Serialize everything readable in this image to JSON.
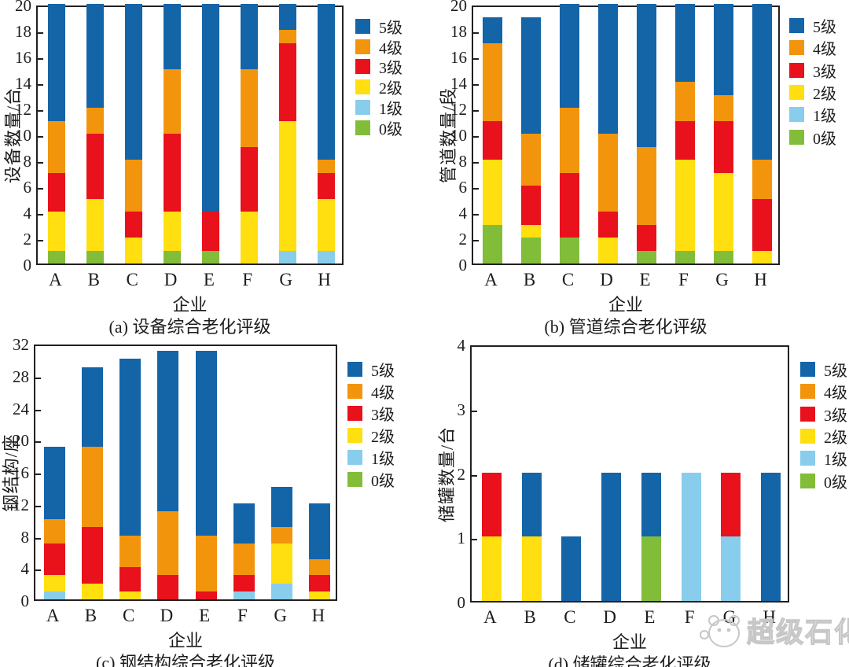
{
  "page": {
    "background": "#ffffff",
    "watermark_text": "超级石化"
  },
  "colors": {
    "5级": "#1464a8",
    "4级": "#f2950d",
    "3级": "#e8111c",
    "2级": "#ffdf0f",
    "1级": "#89cdec",
    "0级": "#82bd3a"
  },
  "legend": {
    "position": "right",
    "entries": [
      "5级",
      "4级",
      "3级",
      "2级",
      "1级",
      "0级"
    ]
  },
  "chart_data": [
    {
      "id": "a",
      "type": "bar",
      "stacked": true,
      "caption": "(a) 设备综合老化评级",
      "ylabel": "设备数量/台",
      "xlabel": "企业",
      "categories": [
        "A",
        "B",
        "C",
        "D",
        "E",
        "F",
        "G",
        "H"
      ],
      "ylim": [
        0,
        20
      ],
      "yticks": [
        0,
        2,
        4,
        6,
        8,
        10,
        12,
        14,
        16,
        18,
        20
      ],
      "grid": false,
      "series": [
        {
          "name": "0级",
          "values": [
            1,
            1,
            0,
            1,
            1,
            0,
            0,
            0
          ]
        },
        {
          "name": "1级",
          "values": [
            0,
            0,
            0,
            0,
            0,
            0,
            1,
            1
          ]
        },
        {
          "name": "2级",
          "values": [
            3,
            4,
            2,
            3,
            0,
            4,
            10,
            4
          ]
        },
        {
          "name": "3级",
          "values": [
            3,
            5,
            2,
            6,
            3,
            5,
            6,
            2
          ]
        },
        {
          "name": "4级",
          "values": [
            4,
            2,
            4,
            5,
            0,
            6,
            1,
            1
          ]
        },
        {
          "name": "5级",
          "values": [
            9,
            8,
            12,
            5,
            16,
            5,
            2,
            12
          ]
        }
      ]
    },
    {
      "id": "b",
      "type": "bar",
      "stacked": true,
      "caption": "(b) 管道综合老化评级",
      "ylabel": "管道数量/段",
      "xlabel": "企业",
      "categories": [
        "A",
        "B",
        "C",
        "D",
        "E",
        "F",
        "G",
        "H"
      ],
      "ylim": [
        0,
        20
      ],
      "yticks": [
        0,
        2,
        4,
        6,
        8,
        10,
        12,
        14,
        16,
        18,
        20
      ],
      "grid": false,
      "series": [
        {
          "name": "0级",
          "values": [
            3,
            2,
            2,
            0,
            1,
            1,
            1,
            0
          ]
        },
        {
          "name": "1级",
          "values": [
            0,
            0,
            0,
            0,
            0,
            0,
            0,
            0
          ]
        },
        {
          "name": "2级",
          "values": [
            5,
            1,
            0,
            2,
            0,
            7,
            6,
            1
          ]
        },
        {
          "name": "3级",
          "values": [
            3,
            3,
            5,
            2,
            2,
            3,
            4,
            4
          ]
        },
        {
          "name": "4级",
          "values": [
            6,
            4,
            5,
            6,
            6,
            3,
            2,
            3
          ]
        },
        {
          "name": "5级",
          "values": [
            2,
            9,
            8,
            10,
            11,
            6,
            7,
            12
          ]
        }
      ]
    },
    {
      "id": "c",
      "type": "bar",
      "stacked": true,
      "caption": "(c) 钢结构综合老化评级",
      "ylabel": "钢结构/座",
      "xlabel": "企业",
      "categories": [
        "A",
        "B",
        "C",
        "D",
        "E",
        "F",
        "G",
        "H"
      ],
      "ylim": [
        0,
        32
      ],
      "yticks": [
        0,
        4,
        8,
        12,
        16,
        20,
        24,
        28,
        32
      ],
      "grid": false,
      "series": [
        {
          "name": "0级",
          "values": [
            0,
            0,
            0,
            0,
            0,
            0,
            0,
            0
          ]
        },
        {
          "name": "1级",
          "values": [
            1,
            0,
            0,
            0,
            0,
            1,
            2,
            0
          ]
        },
        {
          "name": "2级",
          "values": [
            2,
            2,
            1,
            0,
            0,
            0,
            5,
            1
          ]
        },
        {
          "name": "3级",
          "values": [
            4,
            7,
            3,
            3,
            1,
            2,
            0,
            2
          ]
        },
        {
          "name": "4级",
          "values": [
            3,
            10,
            4,
            8,
            7,
            4,
            2,
            2
          ]
        },
        {
          "name": "5级",
          "values": [
            9,
            10,
            22,
            20,
            23,
            5,
            5,
            7
          ]
        }
      ]
    },
    {
      "id": "d",
      "type": "bar",
      "stacked": true,
      "caption": "(d) 储罐综合老化评级",
      "ylabel": "储罐数量/台",
      "xlabel": "企业",
      "categories": [
        "A",
        "B",
        "C",
        "D",
        "E",
        "F",
        "G",
        "H"
      ],
      "ylim": [
        0,
        4
      ],
      "yticks": [
        0,
        1,
        2,
        3,
        4
      ],
      "grid": false,
      "series": [
        {
          "name": "0级",
          "values": [
            0,
            0,
            0,
            0,
            1,
            0,
            0,
            0
          ]
        },
        {
          "name": "1级",
          "values": [
            0,
            0,
            0,
            0,
            0,
            2,
            1,
            0
          ]
        },
        {
          "name": "2级",
          "values": [
            1,
            1,
            0,
            0,
            0,
            0,
            0,
            0
          ]
        },
        {
          "name": "3级",
          "values": [
            1,
            0,
            0,
            0,
            0,
            0,
            1,
            0
          ]
        },
        {
          "name": "4级",
          "values": [
            0,
            0,
            0,
            0,
            0,
            0,
            0,
            0
          ]
        },
        {
          "name": "5级",
          "values": [
            0,
            1,
            1,
            2,
            1,
            0,
            0,
            2
          ]
        }
      ]
    }
  ]
}
